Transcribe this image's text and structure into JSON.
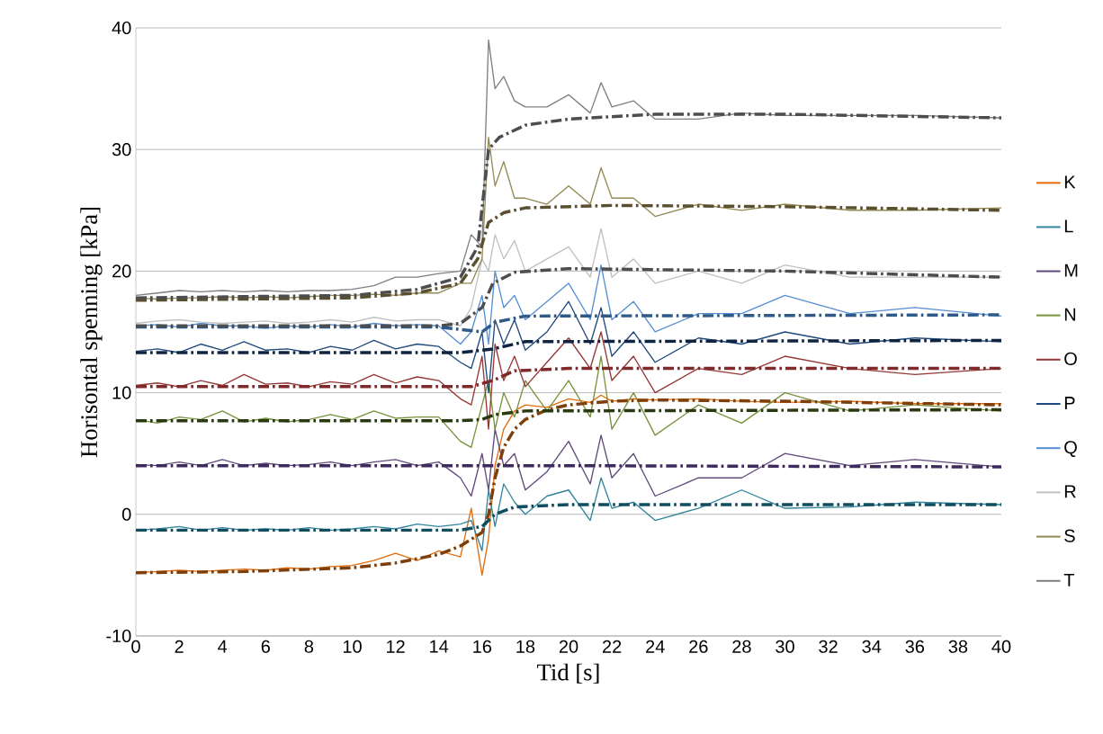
{
  "chart_data": {
    "type": "line",
    "xlabel": "Tid [s]",
    "ylabel": "Horisontal spenning [kPa]",
    "x": [
      0,
      1,
      2,
      3,
      4,
      5,
      6,
      7,
      8,
      9,
      10,
      11,
      12,
      13,
      14,
      15,
      15.5,
      16,
      16.3,
      16.6,
      17,
      17.5,
      18,
      19,
      20,
      21,
      21.5,
      22,
      23,
      24,
      26,
      28,
      30,
      33,
      36,
      40
    ],
    "xlim": [
      0,
      40
    ],
    "ylim": [
      -10,
      40
    ],
    "xticks": [
      0,
      2,
      4,
      6,
      8,
      10,
      12,
      14,
      16,
      18,
      20,
      22,
      24,
      26,
      28,
      30,
      32,
      34,
      36,
      38,
      40
    ],
    "yticks": [
      -10,
      0,
      10,
      20,
      30,
      40
    ],
    "grid": "y",
    "legend": "right",
    "marker": "none",
    "series": [
      {
        "name": "K",
        "color": "#e46c0a",
        "values": [
          -4.8,
          -4.7,
          -4.6,
          -4.7,
          -4.6,
          -4.5,
          -4.6,
          -4.4,
          -4.5,
          -4.3,
          -4.2,
          -3.8,
          -3.2,
          -3.8,
          -3.0,
          -3.5,
          0.5,
          -5,
          -2,
          4,
          7,
          8.5,
          9,
          8.8,
          9.5,
          9.2,
          9.8,
          9.3,
          9.5,
          9.4,
          9.5,
          9.3,
          9.2,
          9.3,
          9.1,
          9.1
        ]
      },
      {
        "name": "L",
        "color": "#31859c",
        "values": [
          -1.3,
          -1.2,
          -1.0,
          -1.3,
          -1.1,
          -1.3,
          -1.2,
          -1.3,
          -1.1,
          -1.3,
          -1.2,
          -1.0,
          -1.2,
          -0.8,
          -1.0,
          -0.8,
          -0.5,
          -3,
          2,
          -1,
          2.5,
          1,
          0,
          1.5,
          2,
          -0.5,
          3,
          0.5,
          1,
          -0.5,
          0.5,
          2,
          0.5,
          0.6,
          1,
          0.8
        ]
      },
      {
        "name": "M",
        "color": "#604a7b",
        "values": [
          4.1,
          4.0,
          4.3,
          4.0,
          4.5,
          4.0,
          4.2,
          4.0,
          4.1,
          4.3,
          4.0,
          4.3,
          4.5,
          4.0,
          4.3,
          3,
          1.5,
          5,
          2,
          7,
          4,
          5,
          2,
          3.5,
          6,
          2.5,
          6.5,
          3,
          5,
          1.5,
          3,
          3,
          5,
          4,
          4.5,
          3.9
        ]
      },
      {
        "name": "N",
        "color": "#77933c",
        "values": [
          7.8,
          7.5,
          8.0,
          7.8,
          8.5,
          7.6,
          7.9,
          7.6,
          7.8,
          8.2,
          7.8,
          8.5,
          7.9,
          8.0,
          8,
          6,
          5.5,
          9,
          11,
          7,
          10,
          8,
          11,
          8.5,
          11,
          8,
          13,
          7,
          10,
          6.5,
          9,
          7.5,
          10,
          8.5,
          9,
          8.5
        ]
      },
      {
        "name": "O",
        "color": "#953735",
        "values": [
          10.6,
          10.8,
          10.5,
          11.0,
          10.6,
          11.5,
          10.7,
          10.8,
          10.5,
          10.9,
          10.7,
          11.5,
          10.8,
          11.3,
          11,
          9.5,
          9,
          13,
          7,
          14,
          11,
          13,
          10.5,
          12.5,
          14.5,
          12,
          15,
          11,
          13,
          10,
          12,
          11.5,
          13,
          12,
          11.5,
          12
        ]
      },
      {
        "name": "P",
        "color": "#1f497d",
        "values": [
          13.4,
          13.6,
          13.3,
          14.0,
          13.5,
          14.2,
          13.5,
          13.6,
          13.3,
          13.8,
          13.5,
          14.3,
          13.6,
          14.0,
          13.8,
          12.5,
          12,
          15,
          10,
          16,
          14,
          16,
          13.5,
          15,
          17.5,
          14,
          17,
          13,
          15,
          12.5,
          14.5,
          14,
          15,
          14,
          14.5,
          14.2
        ]
      },
      {
        "name": "Q",
        "color": "#558ed5",
        "values": [
          15.5,
          15.6,
          15.4,
          15.7,
          15.5,
          15.5,
          15.3,
          15.5,
          15.4,
          15.6,
          15.4,
          15.7,
          15.5,
          15.6,
          15.5,
          14,
          15,
          18,
          14,
          20,
          17,
          18,
          16,
          17.5,
          19,
          16,
          20.5,
          16,
          17.5,
          15,
          16.5,
          16.5,
          18,
          16.5,
          17,
          16.3
        ]
      },
      {
        "name": "R",
        "color": "#c0c0c0",
        "values": [
          15.7,
          15.9,
          16.0,
          15.8,
          15.7,
          15.8,
          15.9,
          15.7,
          15.8,
          16.0,
          15.8,
          16.2,
          15.9,
          16.0,
          16,
          15.5,
          17,
          21,
          20,
          23,
          21,
          22.5,
          20,
          21,
          22,
          19.5,
          23.5,
          19.5,
          21,
          19,
          20,
          19,
          20.5,
          19.5,
          19.5,
          19.5
        ]
      },
      {
        "name": "S",
        "color": "#948a54",
        "values": [
          17.8,
          17.7,
          17.8,
          17.8,
          17.9,
          17.8,
          17.9,
          17.8,
          17.9,
          18.0,
          18.0,
          18.1,
          18.0,
          18.2,
          18.2,
          19,
          19,
          21,
          31,
          27,
          29,
          26,
          26,
          25.5,
          27,
          25.5,
          28.5,
          26,
          26,
          24.5,
          25.5,
          25,
          25.5,
          25,
          25,
          25.2
        ]
      },
      {
        "name": "T",
        "color": "#7f7f7f",
        "values": [
          18.0,
          18.2,
          18.4,
          18.3,
          18.4,
          18.3,
          18.4,
          18.3,
          18.4,
          18.4,
          18.5,
          18.8,
          19.5,
          19.5,
          19.8,
          20,
          23,
          22,
          39,
          35,
          36,
          34,
          33.5,
          33.5,
          34.5,
          33,
          35.5,
          33.5,
          34,
          32.5,
          32.5,
          33,
          32.8,
          32.8,
          32.8,
          32.6
        ]
      },
      {
        "color": "#7f3f0a",
        "line_style": "dashed",
        "x": [
          0,
          5,
          10,
          12,
          14,
          15,
          16,
          16.3,
          16.6,
          17,
          17.5,
          18,
          19,
          20,
          22,
          24,
          30,
          40
        ],
        "values": [
          -4.8,
          -4.7,
          -4.4,
          -4.0,
          -3.3,
          -2.6,
          -1.5,
          0,
          3,
          5.5,
          7,
          7.8,
          8.6,
          9,
          9.3,
          9.4,
          9.3,
          9.0
        ]
      },
      {
        "color": "#0f4d5f",
        "line_style": "dashed",
        "x": [
          0,
          10,
          15,
          16,
          16.6,
          17.5,
          20,
          40
        ],
        "values": [
          -1.3,
          -1.3,
          -1.3,
          -1,
          0,
          0.6,
          0.8,
          0.8
        ]
      },
      {
        "color": "#3f2a5e",
        "line_style": "dashed",
        "x": [
          0,
          20,
          40
        ],
        "values": [
          4.0,
          4.0,
          3.9
        ]
      },
      {
        "color": "#2a3a10",
        "line_style": "dashed",
        "x": [
          0,
          15,
          16,
          16.6,
          18,
          40
        ],
        "values": [
          7.7,
          7.7,
          7.8,
          8.2,
          8.5,
          8.6
        ]
      },
      {
        "color": "#7f2a2a",
        "line_style": "dashed",
        "x": [
          0,
          15.5,
          16.5,
          17.5,
          20,
          40
        ],
        "values": [
          10.5,
          10.5,
          11,
          11.8,
          12,
          12
        ]
      },
      {
        "color": "#0f2440",
        "line_style": "dashed",
        "x": [
          0,
          15,
          16.5,
          18,
          40
        ],
        "values": [
          13.3,
          13.3,
          13.6,
          14.2,
          14.3
        ]
      },
      {
        "color": "#2e5a8a",
        "line_style": "dashed",
        "x": [
          0,
          14,
          15,
          16,
          16.6,
          18,
          40
        ],
        "values": [
          15.4,
          15.4,
          15.2,
          15.0,
          15.8,
          16.3,
          16.4
        ]
      },
      {
        "color": "#4d4d4d",
        "line_style": "dashed",
        "x": [
          0,
          14,
          15,
          16,
          16.5,
          17.5,
          20,
          30,
          40
        ],
        "values": [
          15.5,
          15.5,
          15.7,
          17,
          19,
          19.9,
          20.2,
          20.0,
          19.5
        ]
      },
      {
        "color": "#5a5030",
        "line_style": "dashed",
        "x": [
          0,
          10,
          13,
          15,
          15.8,
          16.3,
          17,
          18,
          22,
          30,
          40
        ],
        "values": [
          17.6,
          17.8,
          18.2,
          19,
          21,
          24,
          24.8,
          25.2,
          25.4,
          25.3,
          25
        ]
      },
      {
        "color": "#4d4d4d",
        "line_style": "dashed",
        "x": [
          0,
          10,
          13,
          15,
          15.8,
          16.3,
          16.8,
          18,
          20,
          24,
          30,
          40
        ],
        "values": [
          17.8,
          18.0,
          18.5,
          19.5,
          22,
          30,
          31,
          32,
          32.5,
          32.9,
          32.9,
          32.6
        ]
      }
    ]
  }
}
